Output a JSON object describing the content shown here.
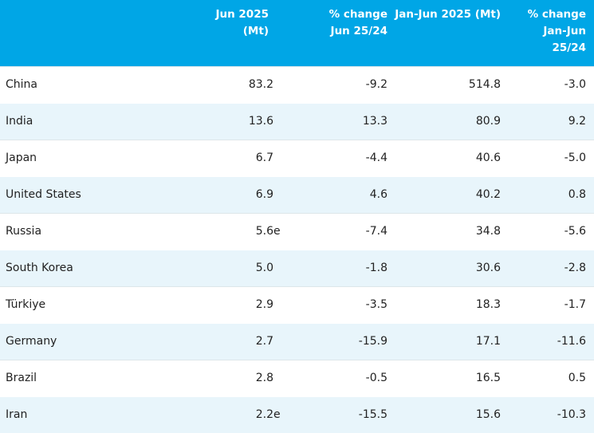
{
  "header": {
    "country": "",
    "jun_2025": [
      "Jun 2025",
      "(Mt)"
    ],
    "flag": "",
    "pct_change_jun": [
      "% change",
      "Jun 25/24"
    ],
    "jan_jun_2025": [
      "Jan-Jun 2025 (Mt)"
    ],
    "pct_change_jan_jun": [
      "% change",
      "Jan-Jun",
      "25/24"
    ]
  },
  "rows": [
    {
      "country": "China",
      "jun_2025": "83.2",
      "flag": "",
      "pct_change_jun": "-9.2",
      "jan_jun_2025": "514.8",
      "pct_change_jan_jun": "-3.0"
    },
    {
      "country": "India",
      "jun_2025": "13.6",
      "flag": "",
      "pct_change_jun": "13.3",
      "jan_jun_2025": "80.9",
      "pct_change_jan_jun": "9.2"
    },
    {
      "country": "Japan",
      "jun_2025": "6.7",
      "flag": "",
      "pct_change_jun": "-4.4",
      "jan_jun_2025": "40.6",
      "pct_change_jan_jun": "-5.0"
    },
    {
      "country": "United States",
      "jun_2025": "6.9",
      "flag": "",
      "pct_change_jun": "4.6",
      "jan_jun_2025": "40.2",
      "pct_change_jan_jun": "0.8"
    },
    {
      "country": "Russia",
      "jun_2025": "5.6",
      "flag": "e",
      "pct_change_jun": "-7.4",
      "jan_jun_2025": "34.8",
      "pct_change_jan_jun": "-5.6"
    },
    {
      "country": "South Korea",
      "jun_2025": "5.0",
      "flag": "",
      "pct_change_jun": "-1.8",
      "jan_jun_2025": "30.6",
      "pct_change_jan_jun": "-2.8"
    },
    {
      "country": "Türkiye",
      "jun_2025": "2.9",
      "flag": "",
      "pct_change_jun": "-3.5",
      "jan_jun_2025": "18.3",
      "pct_change_jan_jun": "-1.7"
    },
    {
      "country": "Germany",
      "jun_2025": "2.7",
      "flag": "",
      "pct_change_jun": "-15.9",
      "jan_jun_2025": "17.1",
      "pct_change_jan_jun": "-11.6"
    },
    {
      "country": "Brazil",
      "jun_2025": "2.8",
      "flag": "",
      "pct_change_jun": "-0.5",
      "jan_jun_2025": "16.5",
      "pct_change_jan_jun": "0.5"
    },
    {
      "country": "Iran",
      "jun_2025": "2.2",
      "flag": "e",
      "pct_change_jun": "-15.5",
      "jan_jun_2025": "15.6",
      "pct_change_jan_jun": "-10.3"
    }
  ],
  "colors": {
    "header_bg": "#00a6e6",
    "header_text": "#ffffff",
    "stripe_bg": "#e8f5fb"
  }
}
